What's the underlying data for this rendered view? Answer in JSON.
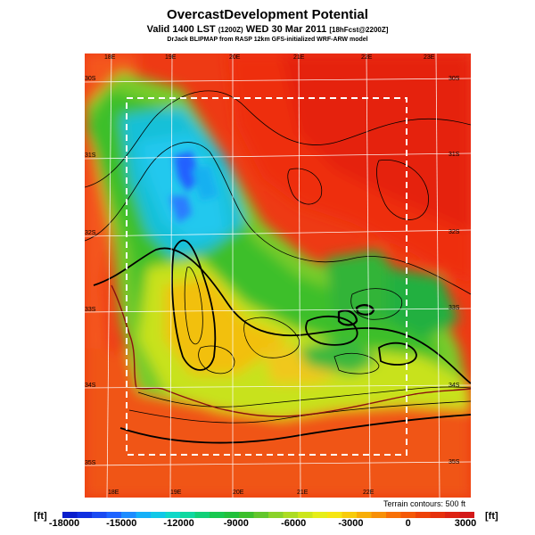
{
  "header": {
    "title": "OvercastDevelopment Potential",
    "valid_main": "Valid 1400 LST",
    "valid_small": "(1200Z)",
    "valid_date": "WED 30 Mar 2011",
    "valid_tail": "[18hFcst@2200Z]",
    "model_line": "DrJack BLIPMAP from RASP 12km GFS-initialized WRF-ARW model"
  },
  "map": {
    "lon_labels_top": [
      "18E",
      "19E",
      "20E",
      "21E",
      "22E",
      "23E"
    ],
    "lon_labels_bottom": [
      "18E",
      "19E",
      "20E",
      "21E",
      "22E"
    ],
    "lat_labels_left": [
      "30S",
      "31S",
      "32S",
      "33S",
      "34S",
      "35S"
    ],
    "lat_labels_right": [
      "30S",
      "31S",
      "32S",
      "33S",
      "34S",
      "35S"
    ],
    "terrain_note": "Terrain contours: 500 ft"
  },
  "colorbar": {
    "units_left": "[ft]",
    "units_right": "[ft]",
    "ticks": [
      "-18000",
      "-15000",
      "-12000",
      "-9000",
      "-6000",
      "-3000",
      "0",
      "3000"
    ],
    "colors": [
      "#0a1ecc",
      "#1030e0",
      "#1a4af2",
      "#1e64ff",
      "#1c8cff",
      "#16b0f8",
      "#10c8e8",
      "#10d8c8",
      "#10d8a0",
      "#12d078",
      "#18c850",
      "#22c03c",
      "#3cbf2c",
      "#62c62c",
      "#8ad22a",
      "#acdc22",
      "#cce61c",
      "#e6ee18",
      "#f6e612",
      "#f8cc0c",
      "#f8ae08",
      "#f89006",
      "#f87006",
      "#f45806",
      "#ee4208",
      "#e6300c",
      "#dd2212",
      "#d31818"
    ]
  },
  "legend_colors": {
    "ocean": "#f04c1a",
    "high_positive": "#ee2e10",
    "cyan_low": "#20c8ee",
    "blue_core": "#2060ff"
  }
}
